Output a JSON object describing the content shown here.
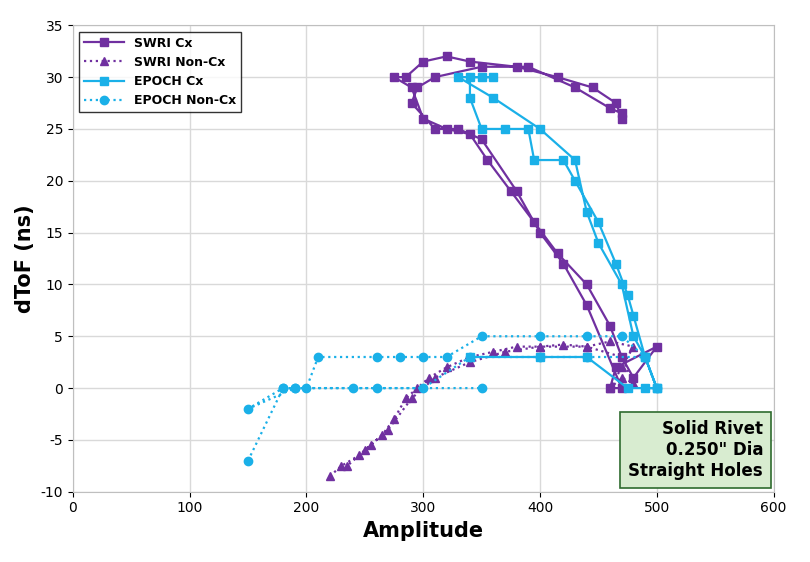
{
  "chart_data": {
    "type": "line",
    "x_label": "Amplitude",
    "y_label": "dToF (ns)",
    "xlim": [
      0,
      600
    ],
    "xticks": [
      0,
      100,
      200,
      300,
      400,
      500,
      600
    ],
    "ylim": [
      -10,
      35
    ],
    "yticks": [
      -10,
      -5,
      0,
      5,
      10,
      15,
      20,
      25,
      30,
      35
    ],
    "grid": true,
    "legend": "upper left",
    "annotations": [
      "Solid Rivet\n0.250\" Dia\nStraight Holes"
    ],
    "series": [
      {
        "name": "SWRI Cx",
        "color": "#7030a0",
        "marker": "square",
        "line_style": "solid",
        "x": [
          470,
          465,
          445,
          415,
          380,
          340,
          320,
          300,
          285,
          275,
          290,
          300,
          320,
          340,
          355,
          375,
          395,
          415,
          440,
          460,
          470,
          480,
          500,
          465,
          460,
          470,
          440,
          420,
          400,
          380,
          350,
          330,
          310,
          290,
          295,
          310,
          350,
          390,
          430,
          460,
          470
        ],
        "values": [
          26,
          27.5,
          29,
          30,
          31,
          31.5,
          32,
          31.5,
          30,
          30,
          29,
          26,
          25,
          24.5,
          22,
          19,
          16,
          13,
          10,
          6,
          3,
          1,
          4,
          2,
          0,
          0,
          8,
          12,
          15,
          19,
          24,
          25,
          25,
          27.5,
          29,
          30,
          31,
          31,
          29,
          27,
          26.5
        ]
      },
      {
        "name": "SWRI Non-Cx",
        "color": "#7030a0",
        "marker": "triangle",
        "line_style": "dotted",
        "x": [
          220,
          230,
          245,
          255,
          265,
          275,
          285,
          295,
          305,
          320,
          340,
          360,
          380,
          400,
          420,
          440,
          460,
          480,
          470,
          460,
          470,
          480,
          470,
          440,
          400,
          370,
          340,
          310,
          290,
          270,
          250,
          235
        ],
        "values": [
          -8.5,
          -7.5,
          -6.5,
          -5.5,
          -4.5,
          -3,
          -1,
          0,
          1,
          2,
          3,
          3.5,
          4,
          4,
          4.2,
          4,
          4.5,
          4,
          2,
          0,
          1,
          0.5,
          3,
          4,
          4,
          3.5,
          2.5,
          1,
          -1,
          -4,
          -6,
          -7.5
        ]
      },
      {
        "name": "EPOCH Cx",
        "color": "#1ab0e8",
        "marker": "square",
        "line_style": "solid",
        "x": [
          490,
          500,
          490,
          480,
          475,
          465,
          450,
          430,
          420,
          395,
          390,
          370,
          350,
          340,
          340,
          350,
          360,
          330,
          360,
          400,
          430,
          440,
          450,
          470,
          480,
          490,
          500,
          475,
          440,
          400,
          340
        ],
        "values": [
          0,
          0,
          3,
          7,
          9,
          12,
          16,
          20,
          22,
          22,
          25,
          25,
          25,
          28,
          30,
          30,
          30,
          30,
          28,
          25,
          22,
          17,
          14,
          10,
          5,
          3,
          0,
          0,
          3,
          3,
          3
        ]
      },
      {
        "name": "EPOCH Non-Cx",
        "color": "#1ab0e8",
        "marker": "circle",
        "line_style": "dotted",
        "x": [
          150,
          180,
          190,
          200,
          210,
          260,
          280,
          300,
          320,
          350,
          400,
          440,
          470,
          490,
          500,
          490,
          440,
          400,
          340,
          300,
          240,
          190,
          150,
          180,
          260,
          350
        ],
        "values": [
          -7,
          0,
          0,
          0,
          3,
          3,
          3,
          3,
          3,
          5,
          5,
          5,
          5,
          3,
          0,
          3,
          3,
          3,
          3,
          0,
          0,
          0,
          -2,
          0,
          0,
          0
        ]
      }
    ]
  }
}
